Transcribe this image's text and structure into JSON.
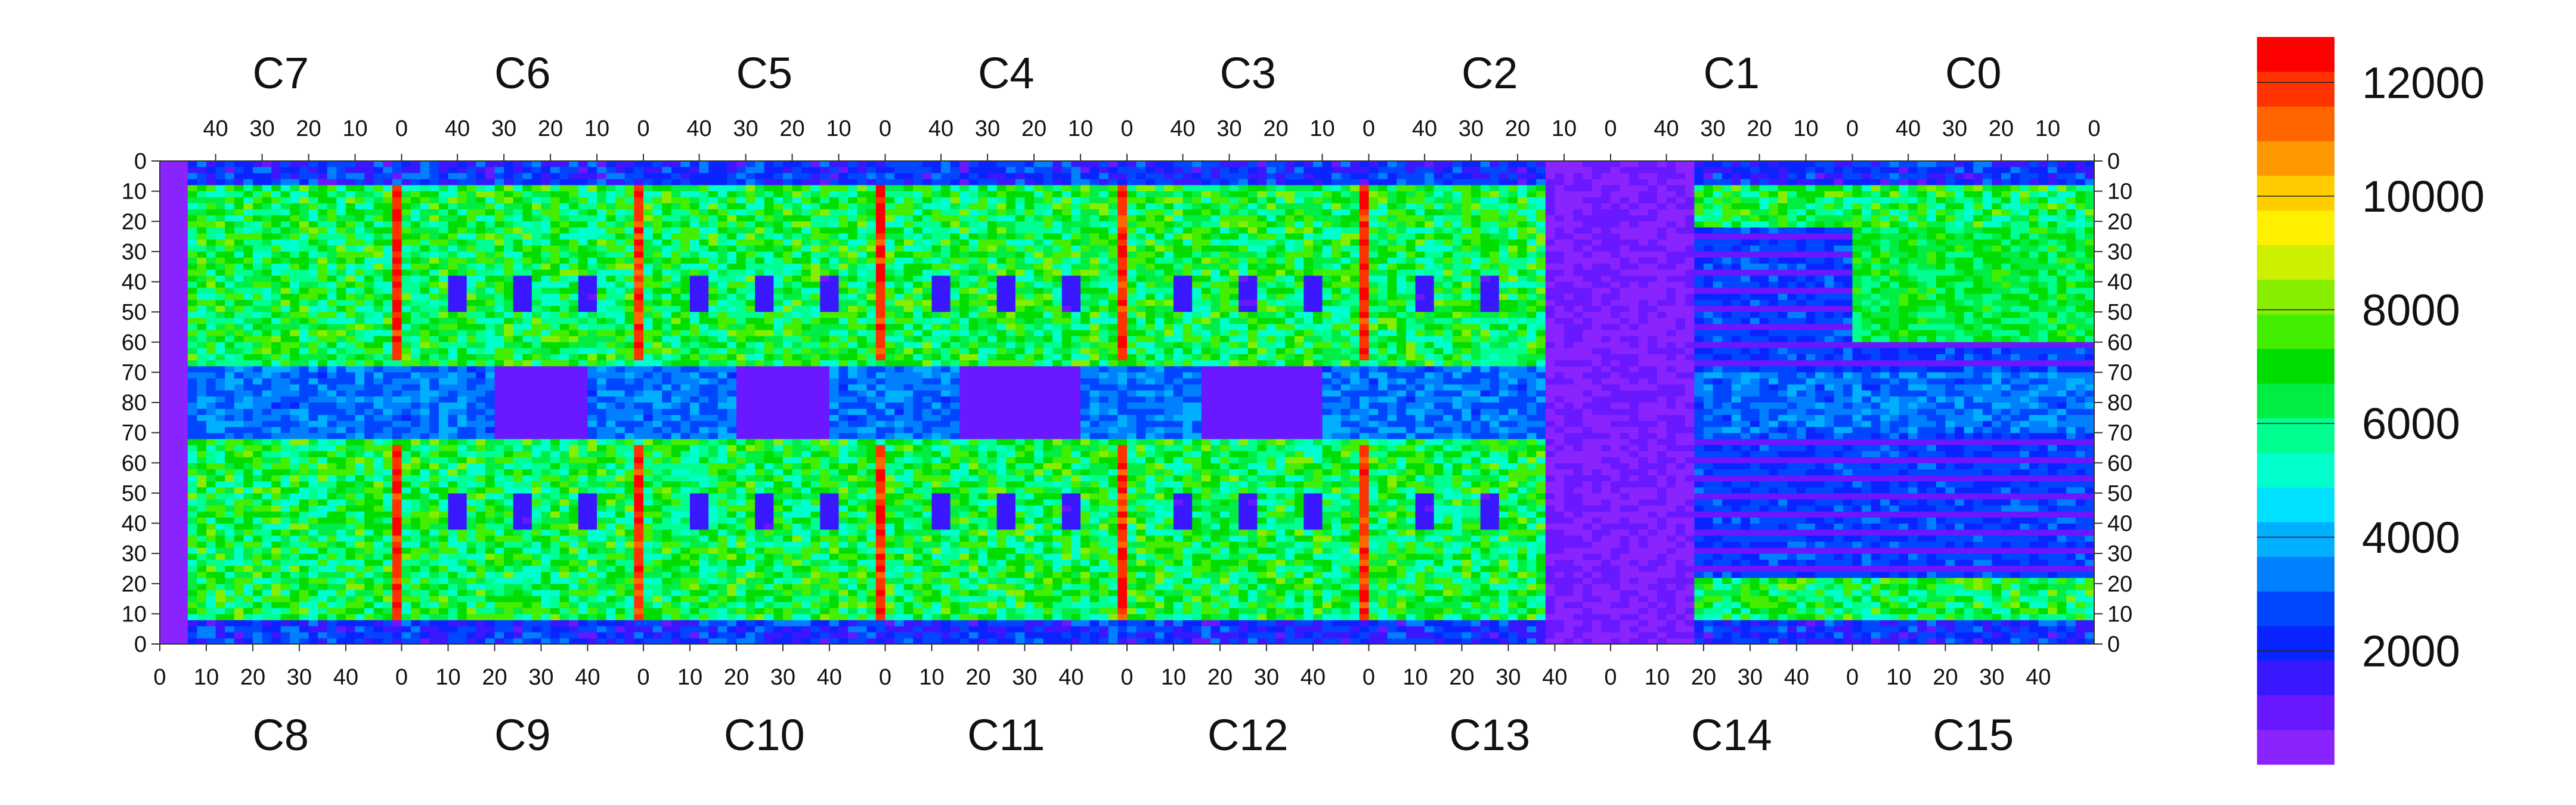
{
  "chart_data": {
    "type": "heatmap",
    "top_chips": [
      "C7",
      "C6",
      "C5",
      "C4",
      "C3",
      "C2",
      "C1",
      "C0"
    ],
    "bottom_chips": [
      "C8",
      "C9",
      "C10",
      "C11",
      "C12",
      "C13",
      "C14",
      "C15"
    ],
    "top_x_ticks": [
      "40",
      "30",
      "20",
      "10",
      "0"
    ],
    "bottom_x_ticks": [
      "0",
      "10",
      "20",
      "30",
      "40"
    ],
    "y_ticks_top_half": [
      "0",
      "10",
      "20",
      "30",
      "40",
      "50",
      "60",
      "70",
      "80"
    ],
    "y_ticks_bottom_half": [
      "70",
      "60",
      "50",
      "40",
      "30",
      "20",
      "10",
      "0"
    ],
    "colorbar": {
      "min": 0,
      "max": 12800,
      "tick_values": [
        2000,
        4000,
        6000,
        8000,
        10000,
        12000
      ],
      "tick_labels": [
        "2000",
        "4000",
        "6000",
        "8000",
        "10000",
        "12000"
      ],
      "colors": [
        "#8a24ff",
        "#6a18ff",
        "#3a18ff",
        "#0a24ff",
        "#0046ff",
        "#0080ff",
        "#00b0ff",
        "#00e0ff",
        "#00ffcc",
        "#00ff90",
        "#00ee44",
        "#00dd00",
        "#44ee00",
        "#88ee00",
        "#ccf000",
        "#fff000",
        "#ffcc00",
        "#ff9900",
        "#ff6600",
        "#ff3300",
        "#ff0000"
      ]
    },
    "chip_columns": 52,
    "chip_rows": 80,
    "rows_per_half": 80,
    "summary_levels": {
      "background": 1200,
      "typical_active": 6500,
      "hot_columns": 12000,
      "dead_region": 600
    }
  }
}
